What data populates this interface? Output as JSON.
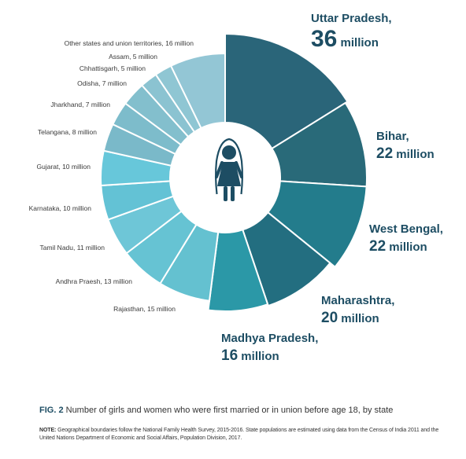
{
  "chart_data": {
    "type": "pie",
    "style": "donut",
    "unit": "million",
    "slices": [
      {
        "label": "Uttar Pradesh",
        "value": 36,
        "value_text": "36",
        "unit_text": "million",
        "color": "#2a6579",
        "emphasis": true
      },
      {
        "label": "Bihar",
        "value": 22,
        "value_text": "22",
        "unit_text": "million",
        "color": "#296a79",
        "emphasis": true
      },
      {
        "label": "West Bengal",
        "value": 22,
        "value_text": "22",
        "unit_text": "million",
        "color": "#237c8c",
        "emphasis": true
      },
      {
        "label": "Maharashtra",
        "value": 20,
        "value_text": "20",
        "unit_text": "million",
        "color": "#236e80",
        "emphasis": true
      },
      {
        "label": "Madhya Pradesh",
        "value": 16,
        "value_text": "16",
        "unit_text": "million",
        "color": "#2b98a7",
        "emphasis": true
      },
      {
        "label": "Rajasthan, 15 million",
        "value": 15,
        "color": "#64c1d0"
      },
      {
        "label": "Andhra Praesh, 13 million",
        "value": 13,
        "color": "#66c3d3"
      },
      {
        "label": "Tamil Nadu, 11 million",
        "value": 11,
        "color": "#6ec6d7"
      },
      {
        "label": "Karnataka, 10 million",
        "value": 10,
        "color": "#63c2d5"
      },
      {
        "label": "Gujarat, 10 million",
        "value": 10,
        "color": "#67c7da"
      },
      {
        "label": "Telangana, 8 million",
        "value": 8,
        "color": "#7ab9c9"
      },
      {
        "label": "Jharkhand, 7 million",
        "value": 7,
        "color": "#7dbccb"
      },
      {
        "label": "Odisha, 7 million",
        "value": 7,
        "color": "#83bfcd"
      },
      {
        "label": "Chhattisgarh, 5 million",
        "value": 5,
        "color": "#8bc3d1"
      },
      {
        "label": "Assam, 5 million",
        "value": 5,
        "color": "#8fc6d3"
      },
      {
        "label": "Other states and union territories, 16 million",
        "value": 16,
        "color": "#93c6d5"
      }
    ],
    "center_icon": "girl-icon",
    "icon_color": "#1d4d63",
    "label_color": "#1d4d63"
  },
  "caption": {
    "fig_label": "FIG. 2",
    "text": " Number of girls and women who were first married or in union before age 18, by state"
  },
  "note": {
    "label": "NOTE:",
    "text": " Geographical boundaries follow the National Family Health Survey, 2015-2016. State populations are estimated using data from the Census of India 2011 and the United Nations Department of Economic and Social Affairs, Population Division, 2017."
  }
}
